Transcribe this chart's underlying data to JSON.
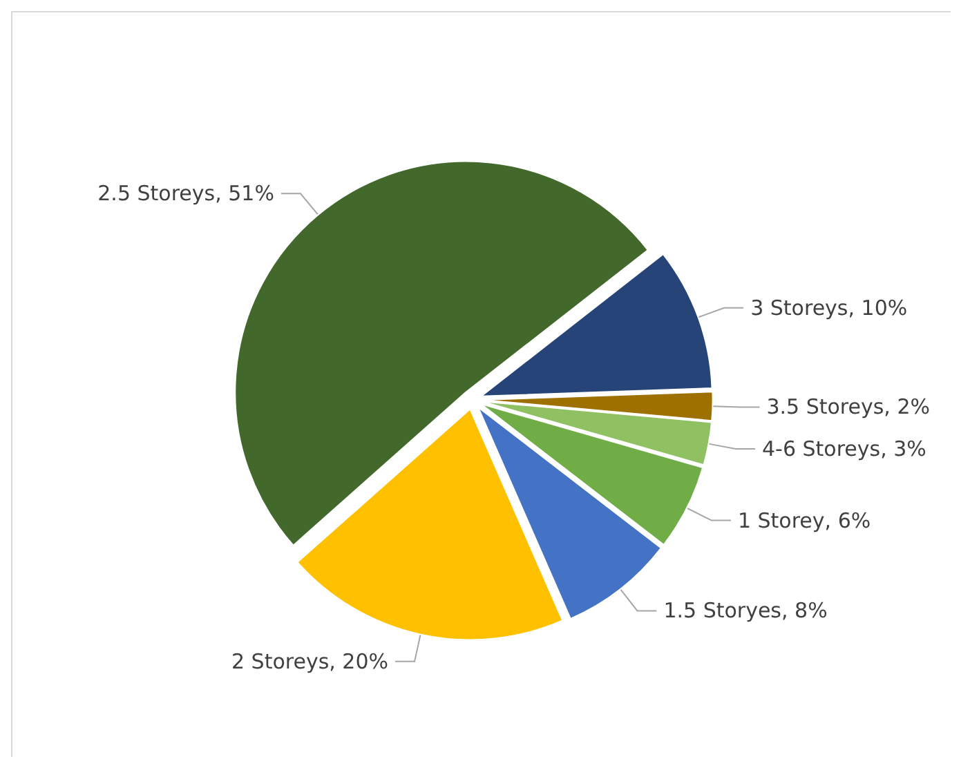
{
  "chart_data": {
    "type": "pie",
    "categories": [
      "3 Storeys",
      "3.5 Storeys",
      "4-6 Storeys",
      "1 Storey",
      "1.5 Storyes",
      "2 Storeys",
      "2.5 Storeys"
    ],
    "values": [
      10,
      2,
      3,
      6,
      8,
      20,
      51
    ],
    "value_labels": [
      "10%",
      "2%",
      "3%",
      "6%",
      "8%",
      "20%",
      "51%"
    ],
    "colors": [
      "#264478",
      "#9e7000",
      "#8fc163",
      "#70ad47",
      "#4472c4",
      "#ffc000",
      "#43682b"
    ],
    "legend": false
  }
}
